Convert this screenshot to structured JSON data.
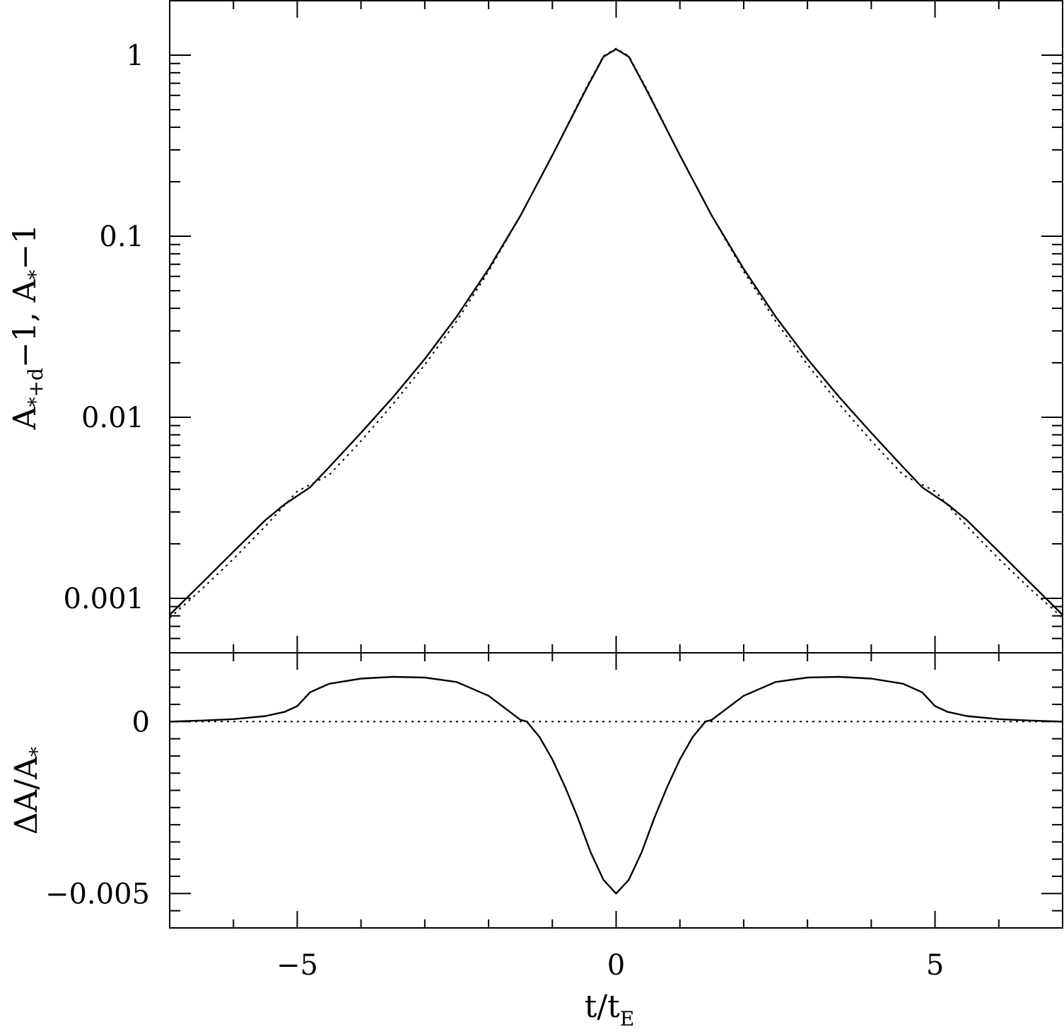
{
  "chart_data": [
    {
      "type": "line",
      "panel": "top",
      "yscale": "log",
      "xlim": [
        -7,
        7
      ],
      "ylim": [
        0.0005,
        2
      ],
      "yticks": [
        {
          "value": 1,
          "label": "1"
        },
        {
          "value": 0.1,
          "label": "0.1"
        },
        {
          "value": 0.01,
          "label": "0.01"
        },
        {
          "value": 0.001,
          "label": "0.001"
        }
      ],
      "ylabel": {
        "parts": [
          "A",
          "*+d",
          "−1, A",
          "*",
          "−1"
        ]
      },
      "series": [
        {
          "style": "solid",
          "x": [
            -7,
            -6.5,
            -6,
            -5.5,
            -5.2,
            -4.8,
            -4.5,
            -4,
            -3.5,
            -3,
            -2.5,
            -2,
            -1.5,
            -1,
            -0.5,
            -0.2,
            0,
            0.2,
            0.5,
            1,
            1.5,
            2,
            2.5,
            3,
            3.5,
            4,
            4.5,
            4.8,
            5.2,
            5.5,
            6,
            6.5,
            7
          ],
          "y": [
            0.00081,
            0.00121,
            0.00181,
            0.0027,
            0.0033,
            0.0041,
            0.0053,
            0.0082,
            0.0129,
            0.021,
            0.036,
            0.066,
            0.13,
            0.28,
            0.62,
            0.98,
            1.08,
            0.98,
            0.62,
            0.28,
            0.13,
            0.066,
            0.036,
            0.021,
            0.0129,
            0.0082,
            0.0053,
            0.0041,
            0.0033,
            0.0027,
            0.00181,
            0.00121,
            0.00081
          ]
        },
        {
          "style": "dotted",
          "x": [
            -7,
            -6.5,
            -6,
            -5.5,
            -5,
            -4.5,
            -4,
            -3.5,
            -3,
            -2.5,
            -2,
            -1.5,
            -1,
            -0.5,
            -0.2,
            0,
            0.2,
            0.5,
            1,
            1.5,
            2,
            2.5,
            3,
            3.5,
            4,
            4.5,
            5,
            5.5,
            6,
            6.5,
            7
          ],
          "y": [
            0.00078,
            0.00112,
            0.00165,
            0.0025,
            0.0039,
            0.0048,
            0.0074,
            0.0118,
            0.0195,
            0.034,
            0.064,
            0.13,
            0.28,
            0.63,
            0.99,
            1.09,
            0.99,
            0.63,
            0.28,
            0.13,
            0.064,
            0.034,
            0.0195,
            0.0118,
            0.0074,
            0.0048,
            0.0039,
            0.0025,
            0.00165,
            0.00112,
            0.00078
          ]
        }
      ]
    },
    {
      "type": "line",
      "panel": "bottom",
      "xlim": [
        -7,
        7
      ],
      "ylim": [
        -0.006,
        0.002
      ],
      "yticks": [
        {
          "value": 0,
          "label": "0"
        },
        {
          "value": -0.005,
          "label": "−0.005"
        }
      ],
      "xticks": [
        {
          "value": -5,
          "label": "−5"
        },
        {
          "value": 0,
          "label": "0"
        },
        {
          "value": 5,
          "label": "5"
        }
      ],
      "xlabel": {
        "parts": [
          "t/t",
          "E"
        ]
      },
      "ylabel": {
        "parts": [
          "ΔA/A",
          "*"
        ]
      },
      "series": [
        {
          "style": "solid",
          "x": [
            -7,
            -6.5,
            -6,
            -5.5,
            -5.2,
            -5,
            -4.8,
            -4.5,
            -4,
            -3.5,
            -3,
            -2.5,
            -2,
            -1.5,
            -1.4,
            -1.2,
            -1,
            -0.8,
            -0.6,
            -0.4,
            -0.2,
            0,
            0.2,
            0.4,
            0.6,
            0.8,
            1,
            1.2,
            1.4,
            1.5,
            2,
            2.5,
            3,
            3.5,
            4,
            4.5,
            4.8,
            5,
            5.2,
            5.5,
            6,
            6.5,
            7
          ],
          "y": [
            0,
            3e-05,
            7e-05,
            0.00016,
            0.00028,
            0.00045,
            0.00085,
            0.0011,
            0.00125,
            0.0013,
            0.00128,
            0.00115,
            0.00075,
            5e-05,
            0.0,
            -0.00045,
            -0.0011,
            -0.0019,
            -0.0028,
            -0.0038,
            -0.0046,
            -0.005,
            -0.0046,
            -0.0038,
            -0.0028,
            -0.0019,
            -0.0011,
            -0.00045,
            0.0,
            5e-05,
            0.00075,
            0.00115,
            0.00128,
            0.0013,
            0.00125,
            0.0011,
            0.00085,
            0.00045,
            0.00028,
            0.00016,
            7e-05,
            3e-05,
            0
          ]
        },
        {
          "style": "dotted",
          "x": [
            -7,
            7
          ],
          "y": [
            0,
            0
          ]
        }
      ]
    }
  ]
}
